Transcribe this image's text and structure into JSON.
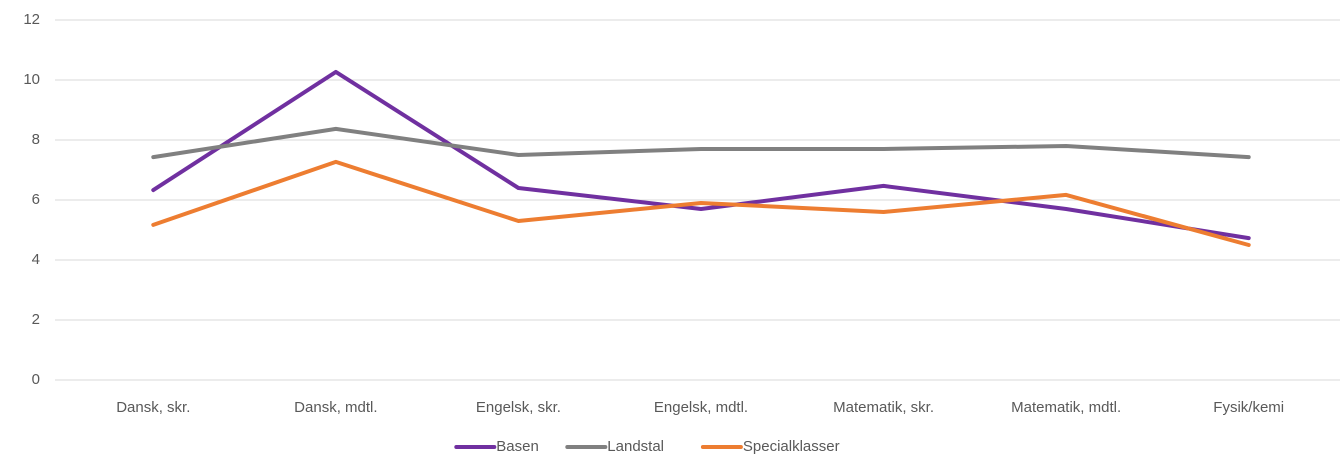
{
  "chart_data": {
    "type": "line",
    "categories": [
      "Dansk, skr.",
      "Dansk, mdtl.",
      "Engelsk, skr.",
      "Engelsk, mdtl.",
      "Matematik, skr.",
      "Matematik, mdtl.",
      "Fysik/kemi"
    ],
    "series": [
      {
        "name": "Basen",
        "color": "#7030a0",
        "values": [
          6.33,
          10.27,
          6.4,
          5.7,
          6.47,
          5.7,
          4.73
        ]
      },
      {
        "name": "Landstal",
        "color": "#808080",
        "values": [
          7.43,
          8.37,
          7.5,
          7.7,
          7.7,
          7.8,
          7.43
        ]
      },
      {
        "name": "Specialklasser",
        "color": "#ed7d31",
        "values": [
          5.17,
          7.27,
          5.3,
          5.9,
          5.6,
          6.17,
          4.5
        ]
      }
    ],
    "ylim": [
      0,
      12
    ],
    "yticks": [
      0,
      2,
      4,
      6,
      8,
      10,
      12
    ],
    "grid": true,
    "legend": "bottom"
  }
}
